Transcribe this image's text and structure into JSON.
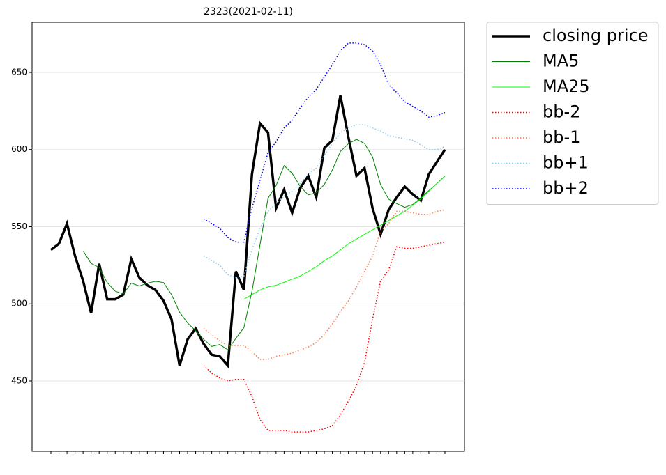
{
  "chart_data": {
    "type": "line",
    "title": "2323(2021-02-11)",
    "categories": [
      null,
      null,
      null,
      null,
      null,
      null,
      null,
      null,
      null,
      null,
      null,
      null,
      null,
      null,
      null,
      null,
      null,
      null,
      null,
      null,
      null,
      null,
      null,
      null,
      null,
      null,
      null,
      null,
      null,
      null,
      null,
      null,
      null,
      null,
      null,
      null,
      null,
      null,
      null,
      null,
      null,
      null,
      null,
      null,
      null,
      null,
      null,
      null,
      null,
      null
    ],
    "ylim": [
      404.4,
      682.5
    ],
    "yticks": [
      450,
      500,
      550,
      600,
      650
    ],
    "grid": true,
    "legend": "outside-right",
    "series": [
      {
        "name": "closing price",
        "color": "#000000",
        "style": "solid",
        "width": 3.5,
        "values": [
          535,
          539,
          552,
          531,
          515,
          494,
          526,
          503,
          503,
          506,
          529,
          517,
          512,
          509,
          502,
          490,
          460,
          477,
          484,
          474,
          467,
          466,
          460,
          521,
          509,
          584,
          617,
          611,
          562,
          574,
          559,
          575,
          583,
          569,
          601,
          606,
          635,
          608,
          583,
          588,
          562,
          545,
          561,
          569,
          576,
          571,
          567,
          584,
          592,
          600
        ]
      },
      {
        "name": "MA5",
        "color": "#008000",
        "style": "solid",
        "width": 1,
        "values": [
          null,
          null,
          null,
          null,
          534.4,
          526.2,
          523.6,
          513.8,
          508.2,
          506.4,
          513.4,
          511.6,
          513.4,
          514.6,
          513.8,
          506,
          494.6,
          487.6,
          482.6,
          477,
          472.4,
          473.6,
          470.2,
          477.6,
          484.6,
          508,
          538.2,
          568.4,
          576.6,
          589.6,
          584.6,
          576.2,
          570.6,
          572,
          577.4,
          586.8,
          598.8,
          603.8,
          606.6,
          604,
          595.2,
          577.2,
          567.8,
          565,
          562.6,
          564.4,
          568.8,
          573.4,
          578,
          582.8
        ]
      },
      {
        "name": "MA25",
        "color": "#00ff00",
        "style": "solid",
        "width": 1,
        "values": [
          null,
          null,
          null,
          null,
          null,
          null,
          null,
          null,
          null,
          null,
          null,
          null,
          null,
          null,
          null,
          null,
          null,
          null,
          null,
          null,
          null,
          null,
          null,
          null,
          503,
          506,
          509,
          511,
          512,
          514,
          516,
          518,
          521,
          524,
          528,
          531,
          535,
          539,
          542,
          545,
          548,
          551,
          554,
          557,
          560,
          564,
          568,
          573,
          578,
          583
        ]
      },
      {
        "name": "bb-2",
        "color": "#ff0000",
        "style": "dotted",
        "width": 1.5,
        "values": [
          null,
          null,
          null,
          null,
          null,
          null,
          null,
          null,
          null,
          null,
          null,
          null,
          null,
          null,
          null,
          null,
          null,
          null,
          null,
          460,
          455,
          452,
          450,
          451,
          451,
          440,
          425,
          418,
          418,
          418,
          417,
          417,
          417,
          418,
          419,
          421,
          428,
          437,
          447,
          462,
          490,
          515,
          522,
          537,
          536,
          536,
          537,
          538,
          539,
          540
        ]
      },
      {
        "name": "bb-1",
        "color": "#ff7f50",
        "style": "dotted",
        "width": 1.5,
        "values": [
          null,
          null,
          null,
          null,
          null,
          null,
          null,
          null,
          null,
          null,
          null,
          null,
          null,
          null,
          null,
          null,
          null,
          null,
          null,
          484,
          480,
          476,
          473,
          473,
          473,
          469,
          464,
          464,
          466,
          467,
          468,
          470,
          472,
          475,
          480,
          487,
          495,
          502,
          511,
          521,
          531,
          547,
          552,
          560,
          560,
          559,
          558,
          558,
          560,
          561
        ]
      },
      {
        "name": "bb+1",
        "color": "#87ceeb",
        "style": "dotted",
        "width": 1.5,
        "values": [
          null,
          null,
          null,
          null,
          null,
          null,
          null,
          null,
          null,
          null,
          null,
          null,
          null,
          null,
          null,
          null,
          null,
          null,
          null,
          531,
          528,
          525,
          519,
          517,
          518,
          535,
          549,
          560,
          565,
          570,
          573,
          578,
          584,
          588,
          596,
          604,
          611,
          614,
          616,
          616,
          614,
          612,
          609,
          608,
          607,
          606,
          603,
          600,
          600,
          602
        ]
      },
      {
        "name": "bb+2",
        "color": "#0000ff",
        "style": "dotted",
        "width": 1.5,
        "values": [
          null,
          null,
          null,
          null,
          null,
          null,
          null,
          null,
          null,
          null,
          null,
          null,
          null,
          null,
          null,
          null,
          null,
          null,
          null,
          555,
          552,
          549,
          543,
          540,
          540,
          562,
          580,
          598,
          605,
          614,
          619,
          627,
          634,
          639,
          647,
          655,
          664,
          669,
          669,
          668,
          664,
          655,
          642,
          637,
          631,
          628,
          625,
          621,
          622,
          624
        ]
      }
    ]
  }
}
